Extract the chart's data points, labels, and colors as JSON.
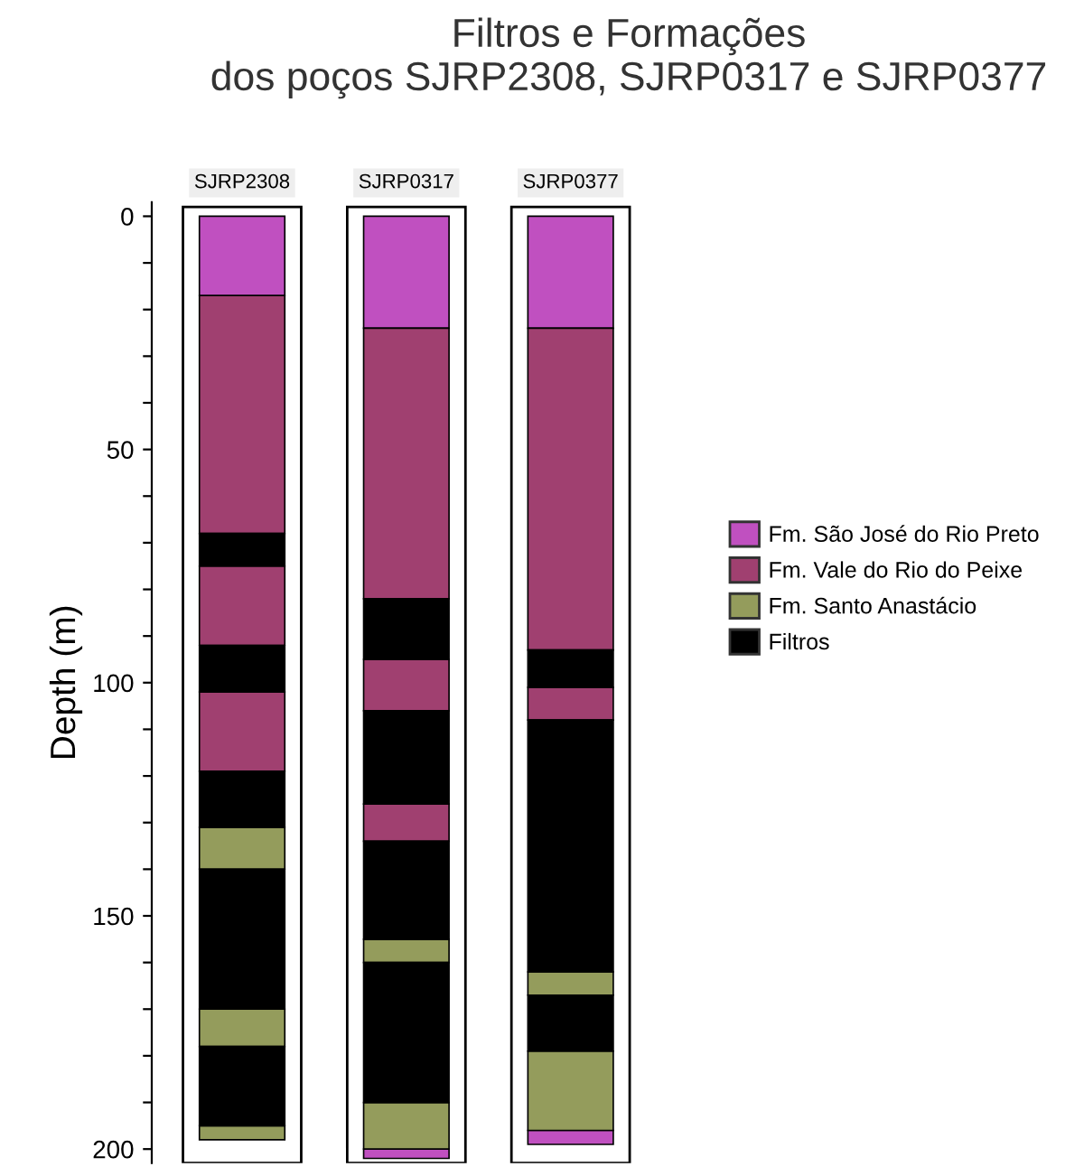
{
  "chart_data": {
    "type": "bar",
    "title": "Filtros e Formações\ndos poços SJRP2308, SJRP0317 e SJRP0377",
    "ylabel": "Depth (m)",
    "categories": [
      "SJRP2308",
      "SJRP0317",
      "SJRP0377"
    ],
    "ylim": [
      203,
      -3
    ],
    "yticks": [
      0,
      {
        "value": 10,
        "label": null
      },
      {
        "value": 20,
        "label": null
      },
      {
        "value": 30,
        "label": null
      },
      {
        "value": 40,
        "label": null
      },
      50,
      {
        "value": 60,
        "label": null
      },
      {
        "value": 70,
        "label": null
      },
      {
        "value": 80,
        "label": null
      },
      {
        "value": 90,
        "label": null
      },
      100,
      {
        "value": 110,
        "label": null
      },
      {
        "value": 120,
        "label": null
      },
      {
        "value": 130,
        "label": null
      },
      {
        "value": 140,
        "label": null
      },
      150,
      {
        "value": 160,
        "label": null
      },
      {
        "value": 170,
        "label": null
      },
      {
        "value": 180,
        "label": null
      },
      {
        "value": 190,
        "label": null
      },
      200
    ],
    "grid": false,
    "legend": "right",
    "series": [
      {
        "name": "Fm. São José do Rio Preto",
        "color": "#c050c0",
        "base": [
          0,
          0,
          0
        ],
        "values": [
          17,
          24,
          24
        ]
      },
      {
        "color": "#c050c0",
        "base": [
          null,
          200,
          196
        ],
        "values": [
          null,
          2,
          3
        ]
      },
      {
        "name": "Fm. Vale do Rio do Peixe",
        "color": "#a04070",
        "base": [
          17,
          24,
          24
        ],
        "values": [
          51,
          58,
          69
        ]
      },
      {
        "color": "#a04070",
        "base": [
          75,
          95,
          101
        ],
        "values": [
          17,
          11,
          7
        ]
      },
      {
        "color": "#a04070",
        "base": [
          102,
          126,
          null
        ],
        "values": [
          17,
          8,
          null
        ]
      },
      {
        "name": "Fm. Santo Anastácio",
        "color": "#949c5c",
        "base": [
          131,
          155,
          162
        ],
        "values": [
          9,
          5,
          5
        ]
      },
      {
        "color": "#949c5c",
        "base": [
          170,
          190,
          179
        ],
        "values": [
          8,
          10,
          17
        ]
      },
      {
        "color": "#949c5c",
        "base": [
          195,
          null,
          null
        ],
        "values": [
          3,
          null,
          null
        ]
      },
      {
        "name": "Filtros",
        "color": "#000000",
        "base": [
          68,
          82,
          93
        ],
        "values": [
          7,
          13,
          8
        ]
      },
      {
        "color": "#000000",
        "base": [
          92,
          106,
          108
        ],
        "values": [
          10,
          20,
          54
        ]
      },
      {
        "color": "#000000",
        "base": [
          119,
          134,
          167
        ],
        "values": [
          12,
          21,
          12
        ]
      },
      {
        "color": "#000000",
        "base": [
          140,
          160,
          null
        ],
        "values": [
          30,
          30,
          null
        ]
      },
      {
        "color": "#000000",
        "base": [
          178,
          null,
          null
        ],
        "values": [
          17,
          null,
          null
        ]
      }
    ]
  }
}
